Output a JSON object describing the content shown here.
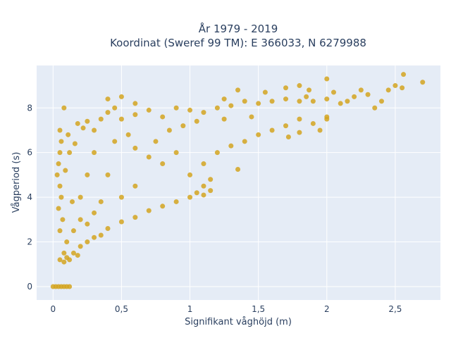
{
  "chart_data": {
    "type": "scatter",
    "title": "År 1979 - 2019",
    "subtitle": "Koordinat (Sweref 99 TM): E 366033, N 6279988",
    "xlabel": "Signifikant våghöjd (m)",
    "ylabel": "Vågperiod (s)",
    "xlim": [
      -0.12,
      2.83
    ],
    "ylim": [
      -0.6,
      9.9
    ],
    "x_ticks": [
      0,
      0.5,
      1,
      1.5,
      2,
      2.5
    ],
    "x_tick_labels": [
      "0",
      "0,5",
      "1",
      "1,5",
      "2",
      "2,5"
    ],
    "y_ticks": [
      0,
      2,
      4,
      6,
      8
    ],
    "y_tick_labels": [
      "0",
      "2",
      "4",
      "6",
      "8"
    ],
    "grid": true,
    "colors": {
      "marker": "#d4a420",
      "plot_bg": "#e5ecf6",
      "grid": "#ffffff",
      "text": "#2a3f5f"
    },
    "series": [
      {
        "values": [
          [
            0.0,
            0.0
          ],
          [
            0.02,
            0.0
          ],
          [
            0.04,
            0.0
          ],
          [
            0.06,
            0.0
          ],
          [
            0.08,
            0.0
          ],
          [
            0.1,
            0.0
          ],
          [
            0.12,
            0.0
          ],
          [
            0.05,
            1.2
          ],
          [
            0.08,
            1.5
          ],
          [
            0.1,
            2.0
          ],
          [
            0.05,
            2.5
          ],
          [
            0.07,
            3.0
          ],
          [
            0.04,
            3.5
          ],
          [
            0.06,
            4.0
          ],
          [
            0.05,
            4.5
          ],
          [
            0.03,
            5.0
          ],
          [
            0.04,
            5.5
          ],
          [
            0.05,
            6.0
          ],
          [
            0.06,
            6.5
          ],
          [
            0.05,
            7.0
          ],
          [
            0.08,
            8.0
          ],
          [
            0.1,
            1.3
          ],
          [
            0.15,
            1.5
          ],
          [
            0.2,
            1.8
          ],
          [
            0.25,
            2.0
          ],
          [
            0.3,
            2.2
          ],
          [
            0.35,
            2.3
          ],
          [
            0.4,
            2.6
          ],
          [
            0.5,
            2.9
          ],
          [
            0.6,
            3.1
          ],
          [
            0.7,
            3.4
          ],
          [
            0.8,
            3.6
          ],
          [
            0.9,
            3.8
          ],
          [
            1.0,
            4.0
          ],
          [
            1.05,
            4.2
          ],
          [
            1.1,
            4.1
          ],
          [
            1.15,
            4.3
          ],
          [
            1.1,
            4.5
          ],
          [
            0.15,
            2.5
          ],
          [
            0.2,
            3.0
          ],
          [
            0.2,
            4.0
          ],
          [
            0.25,
            5.0
          ],
          [
            0.3,
            6.0
          ],
          [
            0.3,
            7.0
          ],
          [
            0.35,
            7.5
          ],
          [
            0.4,
            7.8
          ],
          [
            0.45,
            8.0
          ],
          [
            0.5,
            7.5
          ],
          [
            0.6,
            7.7
          ],
          [
            0.7,
            7.9
          ],
          [
            0.8,
            7.6
          ],
          [
            0.9,
            8.0
          ],
          [
            1.0,
            7.9
          ],
          [
            1.1,
            7.8
          ],
          [
            1.2,
            8.0
          ],
          [
            1.3,
            8.1
          ],
          [
            1.4,
            8.3
          ],
          [
            1.5,
            8.2
          ],
          [
            1.6,
            8.3
          ],
          [
            1.7,
            8.4
          ],
          [
            1.8,
            8.3
          ],
          [
            1.85,
            8.5
          ],
          [
            1.9,
            8.3
          ],
          [
            2.0,
            8.4
          ],
          [
            2.05,
            8.7
          ],
          [
            2.1,
            8.2
          ],
          [
            2.15,
            8.3
          ],
          [
            2.2,
            8.5
          ],
          [
            2.25,
            8.8
          ],
          [
            2.3,
            8.6
          ],
          [
            2.35,
            8.0
          ],
          [
            2.4,
            8.3
          ],
          [
            2.45,
            8.8
          ],
          [
            2.5,
            9.0
          ],
          [
            2.55,
            8.9
          ],
          [
            2.56,
            9.5
          ],
          [
            2.7,
            9.15
          ],
          [
            1.0,
            5.0
          ],
          [
            1.1,
            5.5
          ],
          [
            1.2,
            6.0
          ],
          [
            1.3,
            6.3
          ],
          [
            1.4,
            6.5
          ],
          [
            1.5,
            6.8
          ],
          [
            1.6,
            7.0
          ],
          [
            1.7,
            7.2
          ],
          [
            1.8,
            7.5
          ],
          [
            1.9,
            7.3
          ],
          [
            2.0,
            7.6
          ],
          [
            1.72,
            6.7
          ],
          [
            1.8,
            6.9
          ],
          [
            1.95,
            7.0
          ],
          [
            2.0,
            7.5
          ],
          [
            1.35,
            5.25
          ],
          [
            1.15,
            4.8
          ],
          [
            0.8,
            5.5
          ],
          [
            0.9,
            6.0
          ],
          [
            0.6,
            4.5
          ],
          [
            0.5,
            4.0
          ],
          [
            0.45,
            6.5
          ],
          [
            0.55,
            6.8
          ],
          [
            0.35,
            3.8
          ],
          [
            0.3,
            3.3
          ],
          [
            0.25,
            2.8
          ],
          [
            0.4,
            5.0
          ],
          [
            0.7,
            5.8
          ],
          [
            0.12,
            6.0
          ],
          [
            0.18,
            7.3
          ],
          [
            0.22,
            7.1
          ],
          [
            0.25,
            7.4
          ],
          [
            0.4,
            8.4
          ],
          [
            0.5,
            8.5
          ],
          [
            0.6,
            8.2
          ],
          [
            1.55,
            8.7
          ],
          [
            1.7,
            8.9
          ],
          [
            1.8,
            9.0
          ],
          [
            1.87,
            8.8
          ],
          [
            2.0,
            9.3
          ],
          [
            1.25,
            8.4
          ],
          [
            1.35,
            8.8
          ],
          [
            0.6,
            6.2
          ],
          [
            0.75,
            6.5
          ],
          [
            0.85,
            7.0
          ],
          [
            0.95,
            7.2
          ],
          [
            1.05,
            7.4
          ],
          [
            1.25,
            7.5
          ],
          [
            1.45,
            7.6
          ],
          [
            0.08,
            1.1
          ],
          [
            0.12,
            1.2
          ],
          [
            0.18,
            1.4
          ],
          [
            0.14,
            3.8
          ],
          [
            0.09,
            5.2
          ],
          [
            0.11,
            6.8
          ],
          [
            0.16,
            6.4
          ]
        ]
      }
    ]
  }
}
